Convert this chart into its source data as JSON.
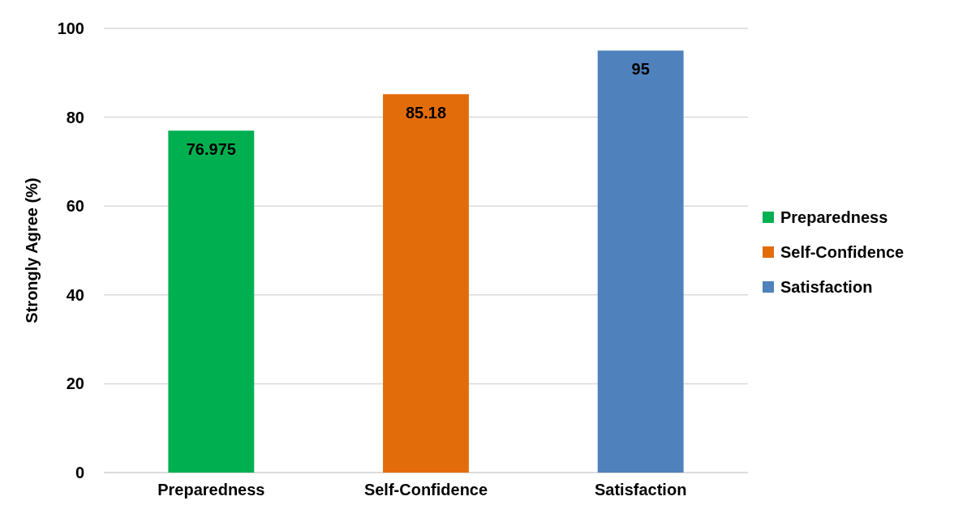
{
  "chart_data": {
    "type": "bar",
    "ylabel": "Strongly Agree (%)",
    "categories": [
      "Preparedness",
      "Self-Confidence",
      "Satisfaction"
    ],
    "stacked": true,
    "series": [
      {
        "name": "Preparedness",
        "color": "#00b050",
        "values": [
          76.975,
          null,
          null
        ]
      },
      {
        "name": "Self-Confidence",
        "color": "#e36c0a",
        "values": [
          null,
          85.18,
          null
        ]
      },
      {
        "name": "Satisfaction",
        "color": "#4f81bd",
        "values": [
          null,
          null,
          95
        ]
      }
    ],
    "ylim": [
      0,
      100
    ],
    "yticks": [
      0,
      20,
      40,
      60,
      80,
      100
    ],
    "grid": "y",
    "data_labels": true,
    "legend": "right"
  }
}
